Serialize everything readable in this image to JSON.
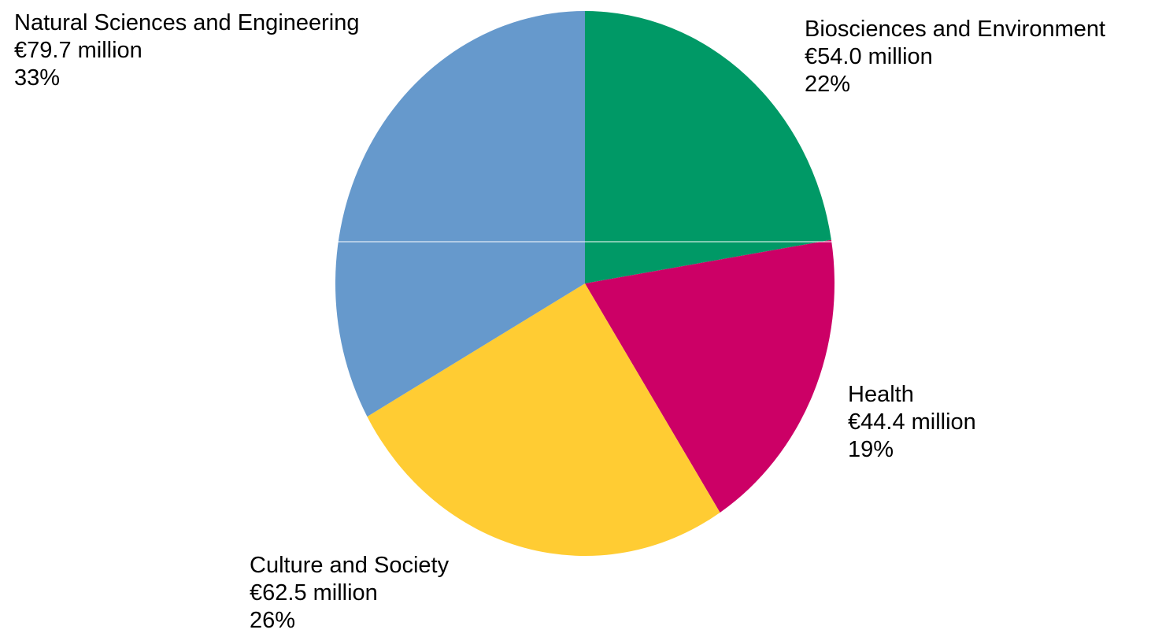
{
  "chart_data": {
    "type": "pie",
    "slices": [
      {
        "label": "Biosciences and Environment",
        "amount_text": "€54.0 million",
        "percent_text": "22%",
        "value": 54.0,
        "color": "#009966"
      },
      {
        "label": "Health",
        "amount_text": "€44.4 million",
        "percent_text": "19%",
        "value": 44.4,
        "color": "#cc0066"
      },
      {
        "label": "Culture and Society",
        "amount_text": "€62.5 million",
        "percent_text": "26%",
        "value": 62.5,
        "color": "#ffcc33"
      },
      {
        "label": "Natural Sciences and Engineering",
        "amount_text": "€79.7 million",
        "percent_text": "33%",
        "value": 79.7,
        "color": "#6699cc"
      }
    ]
  }
}
